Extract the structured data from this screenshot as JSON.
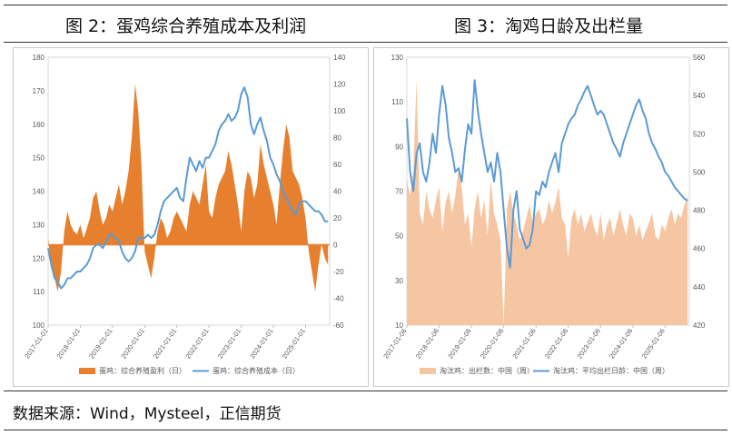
{
  "figure_left_title": "图 2：蛋鸡综合养殖成本及利润",
  "figure_right_title": "图 3：淘鸡日龄及出栏量",
  "source": "数据来源：Wind，Mysteel，正信期货",
  "colors": {
    "orange": "#E6802E",
    "blue": "#5B9BD5",
    "peach": "#F6C6A3"
  },
  "chart_data": [
    {
      "type": "bar+line",
      "title": "",
      "x_ticks": [
        "2017-01-01",
        "2018-01-01",
        "2019-01-01",
        "2020-01-01",
        "2021-01-01",
        "2022-01-01",
        "2023-01-01",
        "2024-01-01",
        "2025-01-01"
      ],
      "y_left": {
        "min": 100,
        "max": 180,
        "ticks": [
          100,
          110,
          120,
          130,
          140,
          150,
          160,
          170,
          180
        ]
      },
      "y_right": {
        "min": -60,
        "max": 140,
        "ticks": [
          -60,
          -40,
          -20,
          0,
          20,
          40,
          60,
          80,
          100,
          120,
          140
        ]
      },
      "legend": [
        "蛋鸡：综合养殖盈利（日）",
        "蛋鸡：综合养殖成本（日）"
      ],
      "series": [
        {
          "name": "蛋鸡：综合养殖盈利（日）",
          "axis": "right",
          "style": "area",
          "x": [
            2017.0,
            2017.1,
            2017.2,
            2017.3,
            2017.4,
            2017.5,
            2017.6,
            2017.7,
            2017.8,
            2017.9,
            2018.0,
            2018.1,
            2018.2,
            2018.3,
            2018.4,
            2018.5,
            2018.6,
            2018.7,
            2018.8,
            2018.9,
            2019.0,
            2019.1,
            2019.2,
            2019.3,
            2019.4,
            2019.5,
            2019.6,
            2019.7,
            2019.8,
            2019.9,
            2020.0,
            2020.1,
            2020.2,
            2020.3,
            2020.4,
            2020.5,
            2020.6,
            2020.7,
            2020.8,
            2020.9,
            2021.0,
            2021.1,
            2021.2,
            2021.3,
            2021.4,
            2021.5,
            2021.6,
            2021.7,
            2021.8,
            2021.9,
            2022.0,
            2022.1,
            2022.2,
            2022.3,
            2022.4,
            2022.5,
            2022.6,
            2022.7,
            2022.8,
            2022.9,
            2023.0,
            2023.1,
            2023.2,
            2023.3,
            2023.4,
            2023.5,
            2023.6,
            2023.7,
            2023.8,
            2023.9,
            2024.0,
            2024.1,
            2024.2,
            2024.3,
            2024.4,
            2024.5,
            2024.6,
            2024.7,
            2024.8,
            2024.9,
            2025.0,
            2025.1,
            2025.2,
            2025.3,
            2025.4,
            2025.5,
            2025.6,
            2025.7
          ],
          "y": [
            5,
            -18,
            -25,
            -35,
            -20,
            10,
            25,
            15,
            10,
            8,
            15,
            5,
            12,
            20,
            35,
            40,
            25,
            15,
            20,
            30,
            25,
            35,
            45,
            30,
            40,
            55,
            80,
            120,
            100,
            60,
            -5,
            -15,
            -25,
            -10,
            10,
            20,
            15,
            5,
            10,
            20,
            25,
            20,
            15,
            10,
            30,
            40,
            35,
            30,
            45,
            60,
            25,
            20,
            35,
            45,
            50,
            55,
            70,
            60,
            45,
            30,
            10,
            40,
            55,
            50,
            35,
            45,
            75,
            60,
            50,
            40,
            30,
            15,
            45,
            70,
            90,
            80,
            55,
            50,
            45,
            35,
            20,
            -5,
            -20,
            -35,
            -15,
            0,
            -10,
            -15
          ]
        },
        {
          "name": "蛋鸡：综合养殖成本（日）",
          "axis": "left",
          "style": "line",
          "x": [
            2017.0,
            2017.1,
            2017.2,
            2017.3,
            2017.4,
            2017.5,
            2017.6,
            2017.7,
            2017.8,
            2017.9,
            2018.0,
            2018.1,
            2018.2,
            2018.3,
            2018.4,
            2018.5,
            2018.6,
            2018.7,
            2018.8,
            2018.9,
            2019.0,
            2019.1,
            2019.2,
            2019.3,
            2019.4,
            2019.5,
            2019.6,
            2019.7,
            2019.8,
            2019.9,
            2020.0,
            2020.1,
            2020.2,
            2020.3,
            2020.4,
            2020.5,
            2020.6,
            2020.7,
            2020.8,
            2020.9,
            2021.0,
            2021.1,
            2021.2,
            2021.3,
            2021.4,
            2021.5,
            2021.6,
            2021.7,
            2021.8,
            2021.9,
            2022.0,
            2022.1,
            2022.2,
            2022.3,
            2022.4,
            2022.5,
            2022.6,
            2022.7,
            2022.8,
            2022.9,
            2023.0,
            2023.1,
            2023.2,
            2023.3,
            2023.4,
            2023.5,
            2023.6,
            2023.7,
            2023.8,
            2023.9,
            2024.0,
            2024.1,
            2024.2,
            2024.3,
            2024.4,
            2024.5,
            2024.6,
            2024.7,
            2024.8,
            2024.9,
            2025.0,
            2025.1,
            2025.2,
            2025.3,
            2025.4,
            2025.5,
            2025.6,
            2025.7
          ],
          "y": [
            123,
            118,
            114,
            113,
            111,
            112,
            114,
            114,
            115,
            116,
            116,
            117,
            118,
            120,
            123,
            124,
            124,
            123,
            125,
            127,
            127,
            126,
            125,
            122,
            120,
            119,
            120,
            122,
            126,
            126,
            126,
            127,
            126,
            127,
            130,
            134,
            137,
            138,
            139,
            140,
            141,
            138,
            137,
            144,
            150,
            148,
            146,
            149,
            147,
            150,
            150,
            152,
            154,
            158,
            160,
            161,
            163,
            161,
            162,
            164,
            169,
            171,
            168,
            160,
            157,
            160,
            162,
            158,
            155,
            150,
            148,
            145,
            143,
            140,
            138,
            136,
            134,
            133,
            136,
            137,
            137,
            136,
            135,
            134,
            134,
            133,
            131,
            131
          ]
        }
      ]
    },
    {
      "type": "area+line",
      "title": "",
      "x_ticks": [
        "2017-01-06",
        "2018-01-06",
        "2019-01-06",
        "2020-01-06",
        "2021-01-06",
        "2022-01-06",
        "2023-01-06",
        "2024-01-06",
        "2025-01-06"
      ],
      "y_left": {
        "min": 10,
        "max": 130,
        "ticks": [
          10,
          30,
          50,
          70,
          90,
          110,
          130
        ]
      },
      "y_right": {
        "min": 420,
        "max": 560,
        "ticks": [
          420,
          440,
          460,
          480,
          500,
          520,
          540,
          560
        ]
      },
      "legend": [
        "淘汰鸡：出栏数：中国（周）",
        "淘汰鸡：平均出栏日龄：中国（周）"
      ],
      "series": [
        {
          "name": "淘汰鸡：出栏数：中国（周）",
          "axis": "left",
          "style": "area",
          "x": [
            2017.0,
            2017.1,
            2017.2,
            2017.3,
            2017.4,
            2017.5,
            2017.6,
            2017.7,
            2017.8,
            2017.9,
            2018.0,
            2018.1,
            2018.2,
            2018.3,
            2018.4,
            2018.5,
            2018.6,
            2018.7,
            2018.8,
            2018.9,
            2019.0,
            2019.1,
            2019.2,
            2019.3,
            2019.4,
            2019.5,
            2019.6,
            2019.7,
            2019.8,
            2019.9,
            2020.0,
            2020.1,
            2020.2,
            2020.3,
            2020.4,
            2020.5,
            2020.6,
            2020.7,
            2020.8,
            2020.9,
            2021.0,
            2021.1,
            2021.2,
            2021.3,
            2021.4,
            2021.5,
            2021.6,
            2021.7,
            2021.8,
            2021.9,
            2022.0,
            2022.1,
            2022.2,
            2022.3,
            2022.4,
            2022.5,
            2022.6,
            2022.7,
            2022.8,
            2022.9,
            2023.0,
            2023.1,
            2023.2,
            2023.3,
            2023.4,
            2023.5,
            2023.6,
            2023.7,
            2023.8,
            2023.9,
            2024.0,
            2024.1,
            2024.2,
            2024.3,
            2024.4,
            2024.5,
            2024.6,
            2024.7,
            2024.8,
            2024.9,
            2025.0,
            2025.1,
            2025.2,
            2025.3,
            2025.4,
            2025.5,
            2025.6,
            2025.7
          ],
          "y": [
            75,
            68,
            80,
            120,
            60,
            55,
            70,
            62,
            58,
            66,
            72,
            52,
            65,
            70,
            60,
            68,
            80,
            72,
            55,
            60,
            45,
            62,
            70,
            58,
            66,
            50,
            75,
            60,
            55,
            48,
            10,
            62,
            70,
            60,
            55,
            48,
            52,
            58,
            64,
            55,
            60,
            62,
            55,
            58,
            66,
            60,
            65,
            72,
            58,
            55,
            40,
            58,
            62,
            55,
            60,
            52,
            56,
            60,
            54,
            50,
            60,
            48,
            55,
            58,
            50,
            56,
            62,
            55,
            50,
            60,
            58,
            50,
            55,
            48,
            52,
            56,
            60,
            50,
            48,
            55,
            52,
            58,
            62,
            55,
            60,
            58,
            64,
            68
          ]
        },
        {
          "name": "淘汰鸡：平均出栏日龄：中国（周）",
          "axis": "right",
          "style": "line",
          "x": [
            2017.0,
            2017.1,
            2017.2,
            2017.3,
            2017.4,
            2017.5,
            2017.6,
            2017.7,
            2017.8,
            2017.9,
            2018.0,
            2018.1,
            2018.2,
            2018.3,
            2018.4,
            2018.5,
            2018.6,
            2018.7,
            2018.8,
            2018.9,
            2019.0,
            2019.1,
            2019.2,
            2019.3,
            2019.4,
            2019.5,
            2019.6,
            2019.7,
            2019.8,
            2019.9,
            2020.0,
            2020.1,
            2020.2,
            2020.3,
            2020.4,
            2020.5,
            2020.6,
            2020.7,
            2020.8,
            2020.9,
            2021.0,
            2021.1,
            2021.2,
            2021.3,
            2021.4,
            2021.5,
            2021.6,
            2021.7,
            2021.8,
            2021.9,
            2022.0,
            2022.1,
            2022.2,
            2022.3,
            2022.4,
            2022.5,
            2022.6,
            2022.7,
            2022.8,
            2022.9,
            2023.0,
            2023.1,
            2023.2,
            2023.3,
            2023.4,
            2023.5,
            2023.6,
            2023.7,
            2023.8,
            2023.9,
            2024.0,
            2024.1,
            2024.2,
            2024.3,
            2024.4,
            2024.5,
            2024.6,
            2024.7,
            2024.8,
            2024.9,
            2025.0,
            2025.1,
            2025.2,
            2025.3,
            2025.4,
            2025.5,
            2025.6,
            2025.7
          ],
          "y": [
            528,
            500,
            490,
            510,
            515,
            500,
            495,
            505,
            520,
            510,
            530,
            545,
            535,
            518,
            510,
            500,
            502,
            495,
            512,
            525,
            520,
            548,
            532,
            520,
            510,
            500,
            505,
            495,
            510,
            500,
            480,
            460,
            450,
            480,
            490,
            470,
            465,
            460,
            462,
            470,
            490,
            488,
            495,
            492,
            500,
            505,
            510,
            500,
            515,
            520,
            525,
            528,
            530,
            535,
            538,
            542,
            545,
            540,
            535,
            530,
            532,
            530,
            525,
            520,
            515,
            512,
            508,
            515,
            520,
            525,
            530,
            535,
            538,
            532,
            528,
            520,
            515,
            512,
            508,
            505,
            500,
            498,
            495,
            492,
            490,
            488,
            486,
            485
          ]
        }
      ]
    }
  ]
}
